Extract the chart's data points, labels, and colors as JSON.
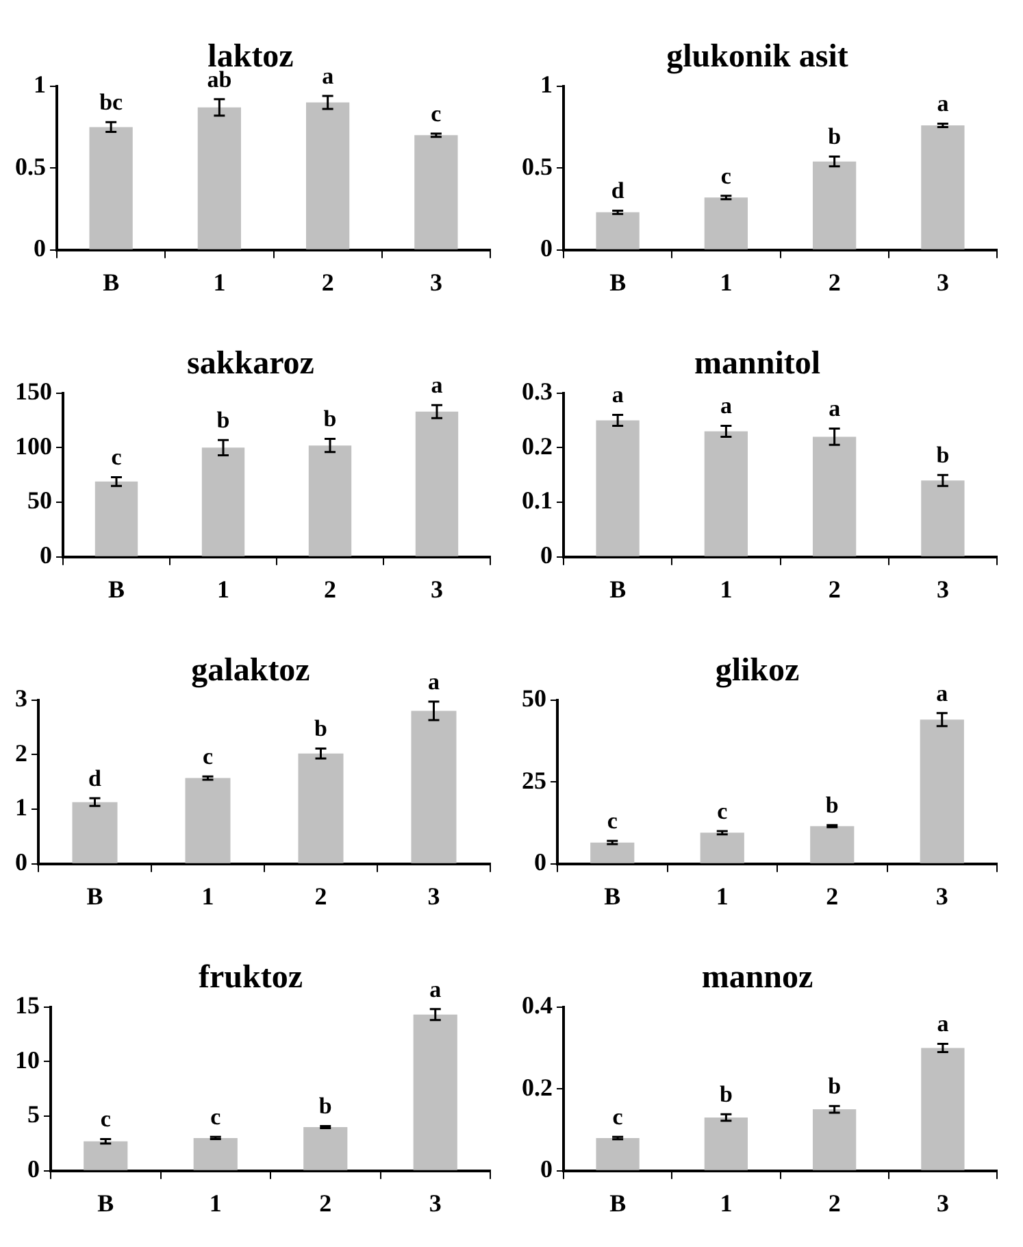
{
  "chart_data": [
    {
      "type": "bar",
      "title": "laktoz",
      "categories": [
        "B",
        "1",
        "2",
        "3"
      ],
      "values": [
        0.75,
        0.87,
        0.9,
        0.7
      ],
      "errors": [
        0.03,
        0.05,
        0.04,
        0.01
      ],
      "color": "#c0c0c0",
      "ylim": [
        0,
        1
      ],
      "yticks": [
        0,
        0.5,
        1
      ],
      "annotations": [
        {
          "text": "bc",
          "x": "B",
          "y": 0.75
        },
        {
          "text": "ab",
          "x": "1",
          "y": 0.87
        },
        {
          "text": "a",
          "x": "2",
          "y": 0.9
        },
        {
          "text": "c",
          "x": "3",
          "y": 0.7
        }
      ]
    },
    {
      "type": "bar",
      "title": "glukonik asit",
      "categories": [
        "B",
        "1",
        "2",
        "3"
      ],
      "values": [
        0.23,
        0.32,
        0.54,
        0.76
      ],
      "errors": [
        0.01,
        0.01,
        0.03,
        0.01
      ],
      "color": "#c0c0c0",
      "ylim": [
        0,
        1
      ],
      "yticks": [
        0,
        0.5,
        1
      ],
      "annotations": [
        {
          "text": "d",
          "x": "B",
          "y": 0.23
        },
        {
          "text": "c",
          "x": "1",
          "y": 0.32
        },
        {
          "text": "b",
          "x": "2",
          "y": 0.54
        },
        {
          "text": "a",
          "x": "3",
          "y": 0.76
        }
      ]
    },
    {
      "type": "bar",
      "title": "sakkaroz",
      "categories": [
        "B",
        "1",
        "2",
        "3"
      ],
      "values": [
        69,
        100,
        102,
        133
      ],
      "errors": [
        4,
        7,
        6,
        6
      ],
      "color": "#c0c0c0",
      "ylim": [
        0,
        150
      ],
      "yticks": [
        0,
        50,
        100,
        150
      ],
      "annotations": [
        {
          "text": "c",
          "x": "B",
          "y": 69
        },
        {
          "text": "b",
          "x": "1",
          "y": 100
        },
        {
          "text": "b",
          "x": "2",
          "y": 102
        },
        {
          "text": "a",
          "x": "3",
          "y": 133
        }
      ]
    },
    {
      "type": "bar",
      "title": "mannitol",
      "categories": [
        "B",
        "1",
        "2",
        "3"
      ],
      "values": [
        0.25,
        0.23,
        0.22,
        0.14
      ],
      "errors": [
        0.01,
        0.01,
        0.015,
        0.01
      ],
      "color": "#c0c0c0",
      "ylim": [
        0,
        0.3
      ],
      "yticks": [
        0,
        0.1,
        0.2,
        0.3
      ],
      "annotations": [
        {
          "text": "a",
          "x": "B",
          "y": 0.25
        },
        {
          "text": "a",
          "x": "1",
          "y": 0.23
        },
        {
          "text": "a",
          "x": "2",
          "y": 0.22
        },
        {
          "text": "b",
          "x": "3",
          "y": 0.14
        }
      ]
    },
    {
      "type": "bar",
      "title": "galaktoz",
      "categories": [
        "B",
        "1",
        "2",
        "3"
      ],
      "values": [
        1.13,
        1.57,
        2.02,
        2.8
      ],
      "errors": [
        0.07,
        0.03,
        0.09,
        0.17
      ],
      "color": "#c0c0c0",
      "ylim": [
        0,
        3
      ],
      "yticks": [
        0,
        1,
        2,
        3
      ],
      "annotations": [
        {
          "text": "d",
          "x": "B",
          "y": 1.13
        },
        {
          "text": "c",
          "x": "1",
          "y": 1.57
        },
        {
          "text": "b",
          "x": "2",
          "y": 2.02
        },
        {
          "text": "a",
          "x": "3",
          "y": 2.8
        }
      ]
    },
    {
      "type": "bar",
      "title": "glikoz",
      "categories": [
        "B",
        "1",
        "2",
        "3"
      ],
      "values": [
        6.5,
        9.5,
        11.5,
        44
      ],
      "errors": [
        0.5,
        0.5,
        0.3,
        2
      ],
      "color": "#c0c0c0",
      "ylim": [
        0,
        50
      ],
      "yticks": [
        0,
        25,
        50
      ],
      "annotations": [
        {
          "text": "c",
          "x": "B",
          "y": 6.5
        },
        {
          "text": "c",
          "x": "1",
          "y": 9.5
        },
        {
          "text": "b",
          "x": "2",
          "y": 11.5
        },
        {
          "text": "a",
          "x": "3",
          "y": 44
        }
      ]
    },
    {
      "type": "bar",
      "title": "fruktoz",
      "categories": [
        "B",
        "1",
        "2",
        "3"
      ],
      "values": [
        2.7,
        3,
        4,
        14.3
      ],
      "errors": [
        0.2,
        0.1,
        0.1,
        0.5
      ],
      "color": "#c0c0c0",
      "ylim": [
        0,
        15
      ],
      "yticks": [
        0,
        5,
        10,
        15
      ],
      "annotations": [
        {
          "text": "c",
          "x": "B",
          "y": 2.7
        },
        {
          "text": "c",
          "x": "1",
          "y": 3
        },
        {
          "text": "b",
          "x": "2",
          "y": 4
        },
        {
          "text": "a",
          "x": "3",
          "y": 14.3
        }
      ]
    },
    {
      "type": "bar",
      "title": "mannoz",
      "categories": [
        "B",
        "1",
        "2",
        "3"
      ],
      "values": [
        0.08,
        0.13,
        0.15,
        0.3
      ],
      "errors": [
        0.003,
        0.008,
        0.008,
        0.01
      ],
      "color": "#c0c0c0",
      "ylim": [
        0,
        0.4
      ],
      "yticks": [
        0,
        0.2,
        0.4
      ],
      "annotations": [
        {
          "text": "c",
          "x": "B",
          "y": 0.08
        },
        {
          "text": "b",
          "x": "1",
          "y": 0.13
        },
        {
          "text": "b",
          "x": "2",
          "y": 0.15
        },
        {
          "text": "a",
          "x": "3",
          "y": 0.3
        }
      ]
    }
  ]
}
